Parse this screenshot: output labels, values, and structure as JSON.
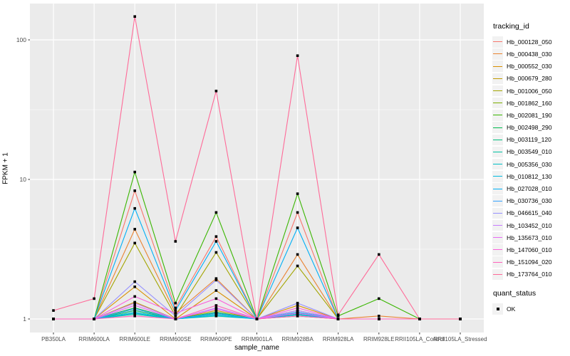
{
  "chart_data": {
    "type": "line",
    "title": "",
    "xlabel": "sample_name",
    "ylabel": "FPKM + 1",
    "y_scale": "log10",
    "y_major_ticks": [
      1,
      10,
      100
    ],
    "y_minor_ticks": [
      3.1623,
      31.623
    ],
    "ylim": [
      0.8,
      182
    ],
    "grid": "on",
    "legend_position": "right",
    "categories": [
      "PB350LA",
      "RRIM600LA",
      "RRIM600LE",
      "RRIM600SE",
      "RRIM600PE",
      "RRIM901LA",
      "RRIM928BA",
      "RRIM928LA",
      "RRIM928LE",
      "RRII105LA_Control",
      "RRII105LA_Stressed"
    ],
    "series": [
      {
        "name": "Hb_000128_050",
        "color": "#F8766D",
        "values": [
          1,
          1,
          8.3,
          1.2,
          3.9,
          1,
          5.8,
          1,
          1,
          1,
          1
        ]
      },
      {
        "name": "Hb_000438_030",
        "color": "#EA8331",
        "values": [
          1,
          1,
          4.4,
          1.1,
          1.95,
          1,
          2.9,
          1,
          1.05,
          1,
          1
        ]
      },
      {
        "name": "Hb_000552_030",
        "color": "#D89000",
        "values": [
          1,
          1,
          1.7,
          1,
          1.6,
          1,
          1.25,
          1,
          1,
          1,
          1
        ]
      },
      {
        "name": "Hb_000679_280",
        "color": "#C09B00",
        "values": [
          1,
          1,
          1.32,
          1,
          1.15,
          1,
          1.1,
          1,
          1,
          1,
          1
        ]
      },
      {
        "name": "Hb_001006_050",
        "color": "#A3A500",
        "values": [
          1,
          1,
          3.5,
          1.05,
          3.0,
          1,
          2.4,
          1,
          1,
          1,
          1
        ]
      },
      {
        "name": "Hb_001862_160",
        "color": "#7CAE00",
        "values": [
          1,
          1,
          1.15,
          1,
          1.1,
          1,
          1.05,
          1,
          1,
          1,
          1
        ]
      },
      {
        "name": "Hb_002081_190",
        "color": "#39B600",
        "values": [
          1,
          1,
          11.3,
          1.3,
          5.8,
          1,
          7.9,
          1.05,
          1.4,
          1,
          1
        ]
      },
      {
        "name": "Hb_002498_290",
        "color": "#00BB4E",
        "values": [
          1,
          1,
          1.2,
          1,
          1.12,
          1,
          1.15,
          1,
          1,
          1,
          1
        ]
      },
      {
        "name": "Hb_003119_120",
        "color": "#00BF7D",
        "values": [
          1,
          1,
          1.15,
          1,
          1.1,
          1,
          1.12,
          1,
          1,
          1,
          1
        ]
      },
      {
        "name": "Hb_003549_010",
        "color": "#00C1A3",
        "values": [
          1,
          1,
          1.08,
          1,
          1.05,
          1,
          1.08,
          1,
          1,
          1,
          1
        ]
      },
      {
        "name": "Hb_005356_030",
        "color": "#00BFC4",
        "values": [
          1,
          1,
          1.12,
          1,
          1.08,
          1,
          1.1,
          1,
          1,
          1,
          1
        ]
      },
      {
        "name": "Hb_010812_130",
        "color": "#00BAE0",
        "values": [
          1,
          1,
          1.1,
          1,
          1.06,
          1,
          1.07,
          1,
          1,
          1,
          1
        ]
      },
      {
        "name": "Hb_027028_010",
        "color": "#00B0F6",
        "values": [
          1,
          1,
          6.2,
          1.15,
          3.6,
          1,
          4.5,
          1,
          1,
          1,
          1
        ]
      },
      {
        "name": "Hb_030736_030",
        "color": "#35A2FF",
        "values": [
          1,
          1,
          1.18,
          1,
          1.1,
          1,
          1.12,
          1,
          1,
          1,
          1
        ]
      },
      {
        "name": "Hb_046615_040",
        "color": "#9590FF",
        "values": [
          1,
          1,
          1.85,
          1.05,
          1.9,
          1,
          1.3,
          1,
          1,
          1,
          1
        ]
      },
      {
        "name": "Hb_103452_010",
        "color": "#C77CFF",
        "values": [
          1,
          1,
          1.3,
          1,
          1.2,
          1,
          1.15,
          1,
          1,
          1,
          1
        ]
      },
      {
        "name": "Hb_135673_010",
        "color": "#E76BF3",
        "values": [
          1,
          1,
          1.25,
          1,
          1.18,
          1,
          1.1,
          1,
          1,
          1,
          1
        ]
      },
      {
        "name": "Hb_147060_010",
        "color": "#FA62DB",
        "values": [
          1,
          1,
          1.45,
          1.1,
          1.4,
          1,
          1.2,
          1,
          1,
          1,
          1
        ]
      },
      {
        "name": "Hb_151094_020",
        "color": "#FF62BC",
        "values": [
          1,
          1,
          1.05,
          1,
          1.25,
          1,
          1.05,
          1,
          1,
          1,
          1
        ]
      },
      {
        "name": "Hb_173764_010",
        "color": "#FF6A98",
        "values": [
          1.15,
          1.4,
          147,
          3.6,
          43,
          1,
          77,
          1.07,
          2.9,
          1,
          1
        ]
      }
    ]
  },
  "legend": {
    "title": "tracking_id"
  },
  "legend2": {
    "title": "quant_status",
    "items": [
      {
        "label": "OK",
        "marker": "black-square"
      }
    ]
  },
  "style_colors": {
    "panel_background": "#EBEBEB",
    "gridline": "#FFFFFF",
    "tick_text": "#4D4D4D",
    "tick_mark": "#333333",
    "legend_key_background": "#F2F2F2",
    "point_color": "#000000"
  }
}
